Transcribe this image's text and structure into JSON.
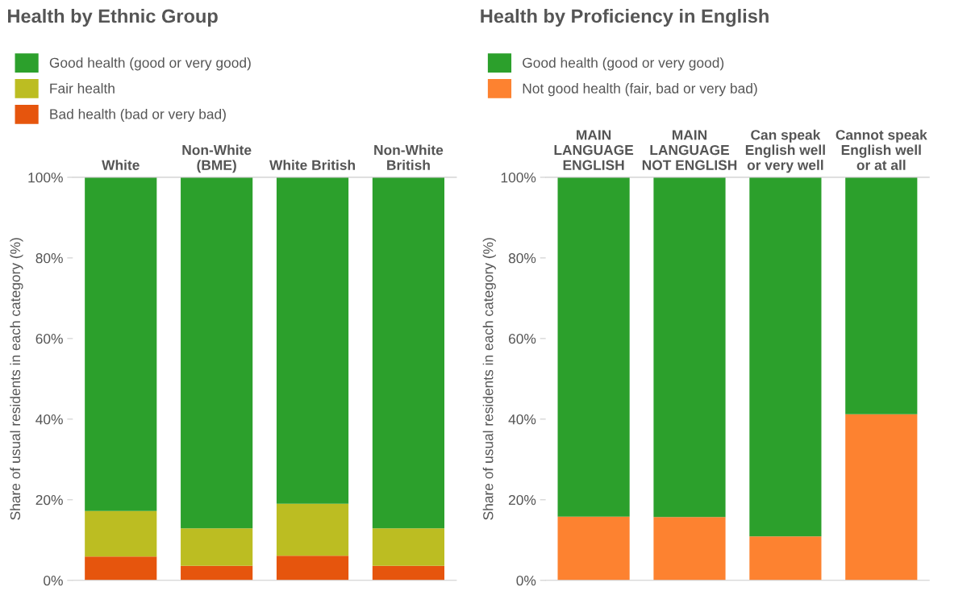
{
  "chart_data": [
    {
      "type": "bar",
      "title": "Health by Ethnic Group",
      "ylabel": "Share of usual residents in each category (%)",
      "categories": [
        "White",
        "Non-White\n(BME)",
        "White British",
        "Non-White\nBritish"
      ],
      "stacked": true,
      "legend": "top",
      "grid": false,
      "ylim": [
        0,
        100
      ],
      "yticks": [
        {
          "value": 0,
          "label": "0%"
        },
        {
          "value": 20,
          "label": "20%"
        },
        {
          "value": 40,
          "label": "40%"
        },
        {
          "value": 60,
          "label": "60%"
        },
        {
          "value": 80,
          "label": "80%"
        },
        {
          "value": 100,
          "label": "100%"
        }
      ],
      "series": [
        {
          "name": "Bad health (bad or very bad)",
          "color": "#e6550d",
          "values": [
            5.9,
            3.6,
            6.1,
            3.6
          ]
        },
        {
          "name": "Fair health",
          "color": "#bcbd22",
          "values": [
            11.3,
            9.3,
            12.9,
            9.3
          ]
        },
        {
          "name": "Good health (good or very good)",
          "color": "#2ca02c",
          "values": [
            82.8,
            87.1,
            81.0,
            87.1
          ]
        }
      ]
    },
    {
      "type": "bar",
      "title": "Health by Proficiency in English",
      "ylabel": "Share of usual residents in each category (%)",
      "categories": [
        "MAIN\nLANGUAGE\nENGLISH",
        "MAIN\nLANGUAGE\nNOT ENGLISH",
        "Can speak\nEnglish well\nor very well",
        "Cannot speak\nEnglish well\nor at all"
      ],
      "stacked": true,
      "legend": "top",
      "grid": false,
      "ylim": [
        0,
        100
      ],
      "yticks": [
        {
          "value": 0,
          "label": "0%"
        },
        {
          "value": 20,
          "label": "20%"
        },
        {
          "value": 40,
          "label": "40%"
        },
        {
          "value": 60,
          "label": "60%"
        },
        {
          "value": 80,
          "label": "80%"
        },
        {
          "value": 100,
          "label": "100%"
        }
      ],
      "series": [
        {
          "name": "Not good health (fair, bad or very bad)",
          "color": "#fd8230",
          "values": [
            15.8,
            15.7,
            10.9,
            41.2
          ]
        },
        {
          "name": "Good health (good or very good)",
          "color": "#2ca02c",
          "values": [
            84.2,
            84.3,
            89.1,
            58.8
          ]
        }
      ]
    }
  ]
}
